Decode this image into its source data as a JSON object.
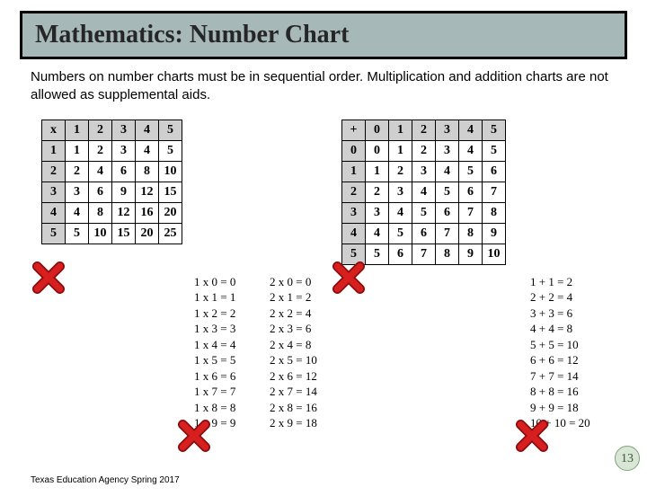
{
  "title": "Mathematics: Number Chart",
  "body": "Numbers on number charts must be in sequential order.  Multiplication and addition charts are not allowed as supplemental aids.",
  "footer": "Texas Education Agency  Spring 2017",
  "page_number": "13",
  "colors": {
    "banner_bg": "#a7b8b8",
    "banner_border": "#000000",
    "table_header_bg": "#cfcfcf",
    "badge_bg": "#d9e6d6",
    "badge_border": "#7da678",
    "badge_text": "#335c2e",
    "x_fill": "#d81f1f",
    "x_stroke": "#8a0e0e"
  },
  "mult_table": {
    "type": "table",
    "header_row": [
      "x",
      "1",
      "2",
      "3",
      "4",
      "5"
    ],
    "rows": [
      [
        "1",
        "1",
        "2",
        "3",
        "4",
        "5"
      ],
      [
        "2",
        "2",
        "4",
        "6",
        "8",
        "10"
      ],
      [
        "3",
        "3",
        "6",
        "9",
        "12",
        "15"
      ],
      [
        "4",
        "4",
        "8",
        "12",
        "16",
        "20"
      ],
      [
        "5",
        "5",
        "10",
        "15",
        "20",
        "25"
      ]
    ]
  },
  "add_table": {
    "type": "table",
    "header_row": [
      "+",
      "0",
      "1",
      "2",
      "3",
      "4",
      "5"
    ],
    "rows": [
      [
        "0",
        "0",
        "1",
        "2",
        "3",
        "4",
        "5"
      ],
      [
        "1",
        "1",
        "2",
        "3",
        "4",
        "5",
        "6"
      ],
      [
        "2",
        "2",
        "3",
        "4",
        "5",
        "6",
        "7"
      ],
      [
        "3",
        "3",
        "4",
        "5",
        "6",
        "7",
        "8"
      ],
      [
        "4",
        "4",
        "5",
        "6",
        "7",
        "8",
        "9"
      ],
      [
        "5",
        "5",
        "6",
        "7",
        "8",
        "9",
        "10"
      ]
    ]
  },
  "facts_col_1": [
    "1 x 0 = 0",
    "1 x 1 = 1",
    "1 x 2 = 2",
    "1 x 3 = 3",
    "1 x 4 = 4",
    "1 x 5 = 5",
    "1 x 6 = 6",
    "1 x 7 = 7",
    "1 x 8 = 8",
    "1 x 9 = 9"
  ],
  "facts_col_2": [
    "2 x 0 = 0",
    "2 x 1 = 2",
    "2 x 2 = 4",
    "2 x 3 = 6",
    "2 x 4 = 8",
    "2 x 5 = 10",
    "2 x 6 = 12",
    "2 x 7 = 14",
    "2 x 8 = 16",
    "2 x 9 = 18"
  ],
  "facts_col_3": [
    "1 + 1 = 2",
    "2 + 2 = 4",
    "3 + 3 = 6",
    "4 + 4 = 8",
    "5 + 5 = 10",
    "6 + 6 = 12",
    "7 + 7 = 14",
    "8 + 8 = 16",
    "9 + 9 = 18",
    "10 + 10 = 20"
  ]
}
